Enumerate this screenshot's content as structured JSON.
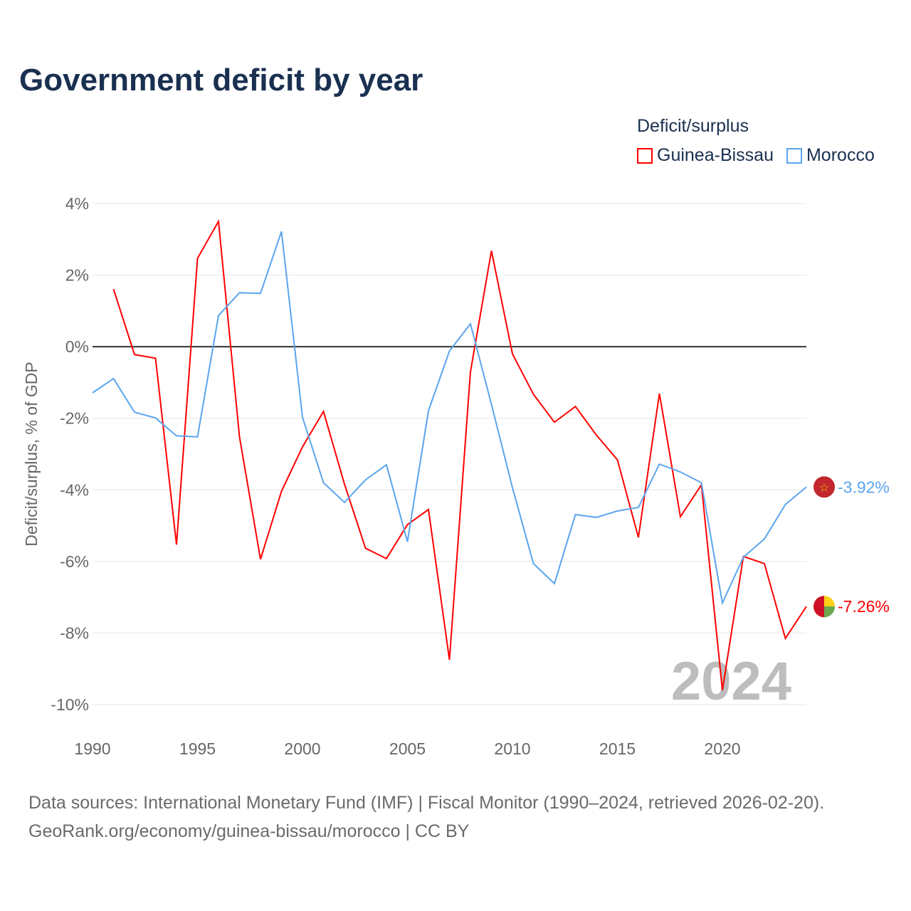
{
  "title": "Government deficit by year",
  "legend": {
    "title": "Deficit/surplus",
    "items": [
      {
        "name": "Guinea-Bissau",
        "color": "#ff0000"
      },
      {
        "name": "Morocco",
        "color": "#5aa5ee"
      }
    ]
  },
  "source": {
    "line1": "Data sources: International Monetary Fund (IMF) | Fiscal Monitor (1990–2024, retrieved 2026-02-20).",
    "line2": "GeoRank.org/economy/guinea-bissau/morocco | CC BY"
  },
  "chart_data": {
    "type": "line",
    "title": "Government deficit by year",
    "ylabel": "Deficit/surplus, % of GDP",
    "xlabel": "",
    "xlim": [
      1990,
      2024
    ],
    "ylim": [
      -10,
      4
    ],
    "yticks": [
      4,
      2,
      0,
      -2,
      -4,
      -6,
      -8,
      -10
    ],
    "ytick_labels": [
      "4%",
      "2%",
      "0%",
      "-2%",
      "-4%",
      "-6%",
      "-8%",
      "-10%"
    ],
    "xticks": [
      1990,
      1995,
      2000,
      2005,
      2010,
      2015,
      2020
    ],
    "xtick_labels": [
      "1990",
      "1995",
      "2000",
      "2005",
      "2010",
      "2015",
      "2020"
    ],
    "year_watermark": "2024",
    "series": [
      {
        "name": "Guinea-Bissau",
        "color": "#ff0000",
        "end_label": "-7.26%",
        "x": [
          1991,
          1992,
          1993,
          1994,
          1995,
          1996,
          1997,
          1998,
          1999,
          2000,
          2001,
          2002,
          2003,
          2004,
          2005,
          2006,
          2007,
          2008,
          2009,
          2010,
          2011,
          2012,
          2013,
          2014,
          2015,
          2016,
          2017,
          2018,
          2019,
          2020,
          2021,
          2022,
          2023,
          2024
        ],
        "values": [
          1.61,
          -0.22,
          -0.32,
          -5.53,
          2.47,
          3.5,
          -2.52,
          -5.94,
          -4.04,
          -2.8,
          -1.81,
          -3.84,
          -5.63,
          -5.92,
          -4.97,
          -4.55,
          -8.75,
          -0.7,
          2.68,
          -0.2,
          -1.33,
          -2.11,
          -1.67,
          -2.47,
          -3.16,
          -5.33,
          -1.31,
          -4.75,
          -3.86,
          -9.6,
          -5.86,
          -6.06,
          -8.15,
          -7.26
        ]
      },
      {
        "name": "Morocco",
        "color": "#5aa5ee",
        "end_label": "-3.92%",
        "x": [
          1990,
          1991,
          1992,
          1993,
          1994,
          1995,
          1996,
          1997,
          1998,
          1999,
          2000,
          2001,
          2002,
          2003,
          2004,
          2005,
          2006,
          2007,
          2008,
          2009,
          2010,
          2011,
          2012,
          2013,
          2014,
          2015,
          2016,
          2017,
          2018,
          2019,
          2020,
          2021,
          2022,
          2023,
          2024
        ],
        "values": [
          -1.29,
          -0.89,
          -1.83,
          -1.99,
          -2.49,
          -2.52,
          0.87,
          1.51,
          1.49,
          3.22,
          -1.97,
          -3.8,
          -4.35,
          -3.72,
          -3.3,
          -5.45,
          -1.79,
          -0.12,
          0.64,
          -1.61,
          -3.94,
          -6.06,
          -6.62,
          -4.69,
          -4.77,
          -4.59,
          -4.49,
          -3.28,
          -3.5,
          -3.8,
          -7.16,
          -5.88,
          -5.37,
          -4.41,
          -3.92
        ]
      }
    ]
  }
}
